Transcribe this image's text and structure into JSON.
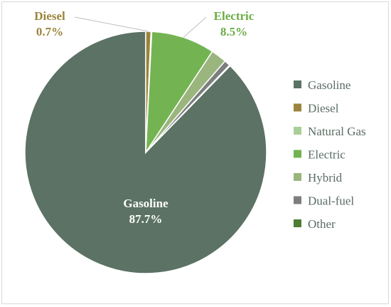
{
  "chart_data": {
    "type": "pie",
    "categories": [
      "Gasoline",
      "Diesel",
      "Natural Gas",
      "Electric",
      "Hybrid",
      "Dual-fuel",
      "Other"
    ],
    "values": [
      87.7,
      0.7,
      0.1,
      8.5,
      2.1,
      0.8,
      0.1
    ],
    "colors": [
      "#5b7264",
      "#9b843b",
      "#a9cf96",
      "#74b352",
      "#9ab67e",
      "#7c7f7e",
      "#4f7d32"
    ],
    "data_labels": [
      {
        "series": "Diesel",
        "name": "Diesel",
        "value": "0.7%",
        "color": "#9b843b"
      },
      {
        "series": "Electric",
        "name": "Electric",
        "value": "8.5%",
        "color": "#6aac44"
      },
      {
        "series": "Gasoline",
        "name": "Gasoline",
        "value": "87.7%",
        "color": "#ffffff"
      }
    ],
    "legend_position": "right",
    "legend_text_color": "#5a6d63"
  }
}
